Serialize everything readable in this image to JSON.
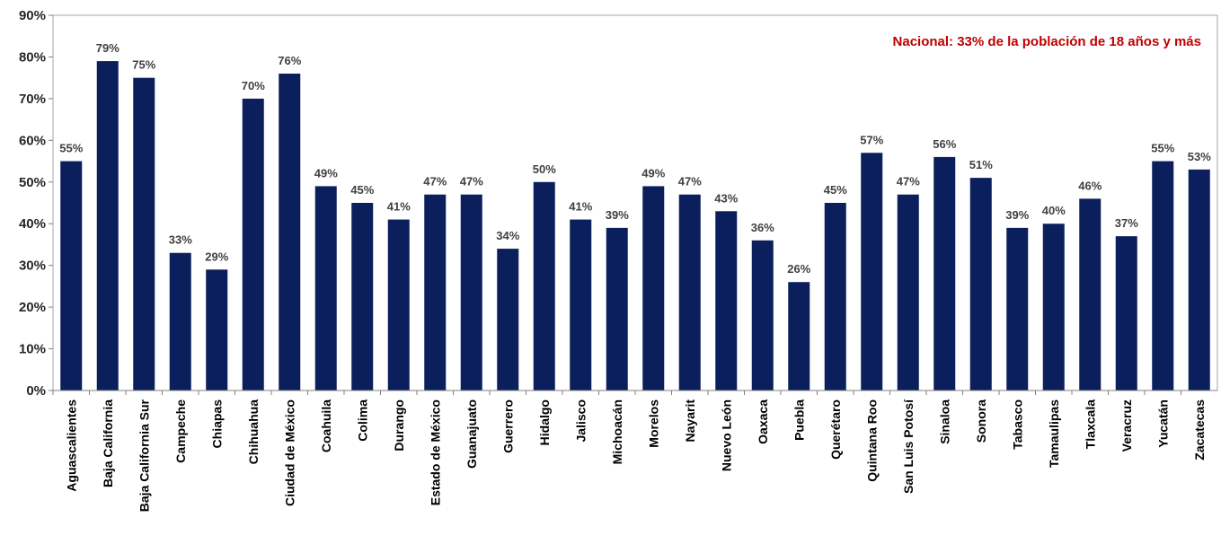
{
  "chart_data": {
    "type": "bar",
    "categories": [
      "Aguascalientes",
      "Baja California",
      "Baja California Sur",
      "Campeche",
      "Chiapas",
      "Chihuahua",
      "Ciudad de México",
      "Coahuila",
      "Colima",
      "Durango",
      "Estado de México",
      "Guanajuato",
      "Guerrero",
      "Hidalgo",
      "Jalisco",
      "Michoacán",
      "Morelos",
      "Nayarit",
      "Nuevo León",
      "Oaxaca",
      "Puebla",
      "Querétaro",
      "Quintana Roo",
      "San Luis Potosí",
      "Sinaloa",
      "Sonora",
      "Tabasco",
      "Tamaulipas",
      "Tlaxcala",
      "Veracruz",
      "Yucatán",
      "Zacatecas"
    ],
    "values": [
      55,
      79,
      75,
      33,
      29,
      70,
      76,
      49,
      45,
      41,
      47,
      47,
      34,
      50,
      41,
      39,
      49,
      47,
      43,
      36,
      26,
      45,
      57,
      47,
      56,
      51,
      39,
      40,
      46,
      37,
      55,
      53
    ],
    "data_labels": [
      "55%",
      "79%",
      "75%",
      "33%",
      "29%",
      "70%",
      "76%",
      "49%",
      "45%",
      "41%",
      "47%",
      "47%",
      "34%",
      "50%",
      "41%",
      "39%",
      "49%",
      "47%",
      "43%",
      "36%",
      "26%",
      "45%",
      "57%",
      "47%",
      "56%",
      "51%",
      "39%",
      "40%",
      "46%",
      "37%",
      "55%",
      "53%"
    ],
    "ylim": [
      0,
      90
    ],
    "yticks": [
      0,
      10,
      20,
      30,
      40,
      50,
      60,
      70,
      80,
      90
    ],
    "ytick_labels": [
      "0%",
      "10%",
      "20%",
      "30%",
      "40%",
      "50%",
      "60%",
      "70%",
      "80%",
      "90%"
    ],
    "annotation": "Nacional: 33% de la población de 18 años y más",
    "grid": false,
    "colors": {
      "bar": "#0b1f5c",
      "annotation": "#c00000",
      "axis": "#808080"
    }
  }
}
